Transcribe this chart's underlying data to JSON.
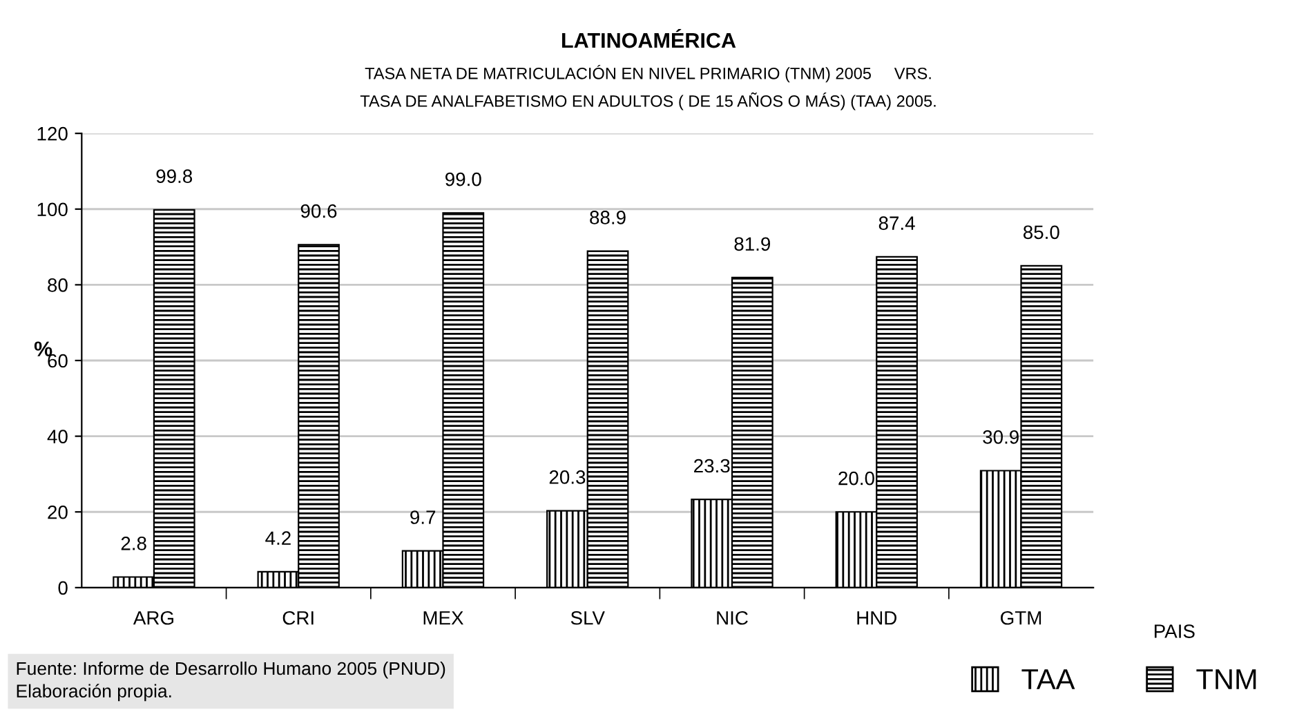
{
  "chart_data": {
    "type": "bar",
    "title": "LATINOAMÉRICA",
    "subtitle": "TASA NETA DE MATRICULACIÓN EN NIVEL PRIMARIO (TNM) 2005     VRS.\nTASA DE ANALFABETISMO EN ADULTOS ( DE 15 AÑOS O MÁS) (TAA) 2005.",
    "xlabel": "PAIS",
    "ylabel": "%",
    "categories": [
      "ARG",
      "CRI",
      "MEX",
      "SLV",
      "NIC",
      "HND",
      "GTM"
    ],
    "series": [
      {
        "name": "TAA",
        "color": "#000000",
        "values": [
          2.8,
          4.2,
          9.7,
          20.3,
          23.3,
          20.0,
          30.9
        ],
        "value_labels": [
          "2.8",
          "4.2",
          "9.7",
          "20.3",
          "23.3",
          "20.0",
          "30.9"
        ]
      },
      {
        "name": "TNM",
        "color": "#000000",
        "values": [
          99.8,
          90.6,
          99.0,
          88.9,
          81.9,
          87.4,
          85.0
        ],
        "value_labels": [
          "99.8",
          "90.6",
          "99.0",
          "88.9",
          "81.9",
          "87.4",
          "85.0"
        ]
      }
    ],
    "ylim": [
      0,
      120
    ],
    "yticks": [
      0,
      20,
      40,
      60,
      80,
      100,
      120
    ],
    "grid": "y",
    "legend": "bottom right",
    "annotations": [
      "Fuente: Informe de Desarrollo Humano 2005 (PNUD)",
      "Elaboración propia."
    ]
  }
}
